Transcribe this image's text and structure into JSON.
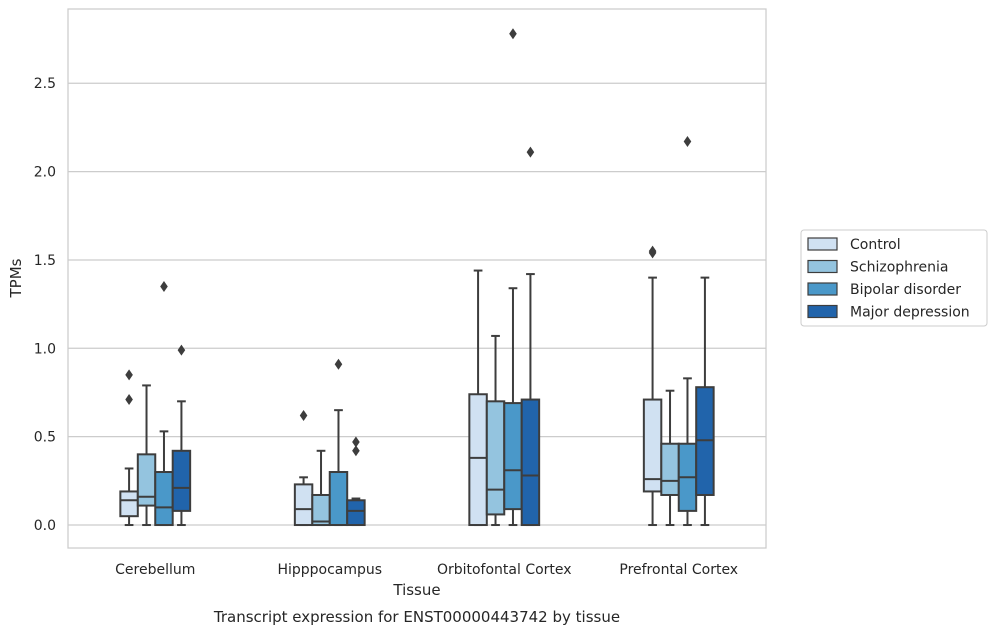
{
  "chart_data": {
    "type": "boxplot",
    "caption": "Transcript expression for ENST00000443742 by tissue",
    "xlabel": "Tissue",
    "ylabel": "TPMs",
    "ylim": [
      -0.13,
      2.92
    ],
    "yticks": [
      0.0,
      0.5,
      1.0,
      1.5,
      2.0,
      2.5
    ],
    "ytick_labels": [
      "0.0",
      "0.5",
      "1.0",
      "1.5",
      "2.0",
      "2.5"
    ],
    "grid": "horizontal",
    "legend_position": "right",
    "categories": [
      "Cerebellum",
      "Hipppocampus",
      "Orbitofontal Cortex",
      "Prefrontal Cortex"
    ],
    "series": [
      {
        "name": "Control",
        "color": "#d0e1f2",
        "boxes": [
          {
            "whislo": 0.0,
            "q1": 0.05,
            "med": 0.14,
            "q3": 0.19,
            "whishi": 0.32,
            "fliers": [
              0.71,
              0.85
            ]
          },
          {
            "whislo": 0.0,
            "q1": 0.0,
            "med": 0.09,
            "q3": 0.23,
            "whishi": 0.27,
            "fliers": [
              0.62
            ]
          },
          {
            "whislo": 0.0,
            "q1": 0.0,
            "med": 0.38,
            "q3": 0.74,
            "whishi": 1.44,
            "fliers": []
          },
          {
            "whislo": 0.0,
            "q1": 0.19,
            "med": 0.26,
            "q3": 0.71,
            "whishi": 1.4,
            "fliers": [
              1.54,
              1.55
            ]
          }
        ]
      },
      {
        "name": "Schizophrenia",
        "color": "#94c4df",
        "boxes": [
          {
            "whislo": 0.0,
            "q1": 0.11,
            "med": 0.16,
            "q3": 0.4,
            "whishi": 0.79,
            "fliers": []
          },
          {
            "whislo": 0.0,
            "q1": 0.0,
            "med": 0.02,
            "q3": 0.17,
            "whishi": 0.42,
            "fliers": []
          },
          {
            "whislo": 0.0,
            "q1": 0.06,
            "med": 0.2,
            "q3": 0.7,
            "whishi": 1.07,
            "fliers": []
          },
          {
            "whislo": 0.0,
            "q1": 0.17,
            "med": 0.25,
            "q3": 0.46,
            "whishi": 0.76,
            "fliers": []
          }
        ]
      },
      {
        "name": "Bipolar disorder",
        "color": "#4a98c9",
        "boxes": [
          {
            "whislo": 0.0,
            "q1": 0.0,
            "med": 0.1,
            "q3": 0.3,
            "whishi": 0.53,
            "fliers": [
              1.35
            ]
          },
          {
            "whislo": 0.0,
            "q1": 0.0,
            "med": 0.0,
            "q3": 0.3,
            "whishi": 0.65,
            "fliers": [
              0.91
            ]
          },
          {
            "whislo": 0.0,
            "q1": 0.09,
            "med": 0.31,
            "q3": 0.69,
            "whishi": 1.34,
            "fliers": [
              2.78
            ]
          },
          {
            "whislo": 0.0,
            "q1": 0.08,
            "med": 0.27,
            "q3": 0.46,
            "whishi": 0.83,
            "fliers": [
              2.17
            ]
          }
        ]
      },
      {
        "name": "Major depression",
        "color": "#2164ab",
        "boxes": [
          {
            "whislo": 0.0,
            "q1": 0.08,
            "med": 0.21,
            "q3": 0.42,
            "whishi": 0.7,
            "fliers": [
              0.99
            ]
          },
          {
            "whislo": 0.0,
            "q1": 0.0,
            "med": 0.08,
            "q3": 0.14,
            "whishi": 0.15,
            "fliers": [
              0.42,
              0.47
            ]
          },
          {
            "whislo": 0.0,
            "q1": 0.0,
            "med": 0.28,
            "q3": 0.71,
            "whishi": 1.42,
            "fliers": [
              2.11
            ]
          },
          {
            "whislo": 0.0,
            "q1": 0.17,
            "med": 0.48,
            "q3": 0.78,
            "whishi": 1.4,
            "fliers": []
          }
        ]
      }
    ]
  }
}
